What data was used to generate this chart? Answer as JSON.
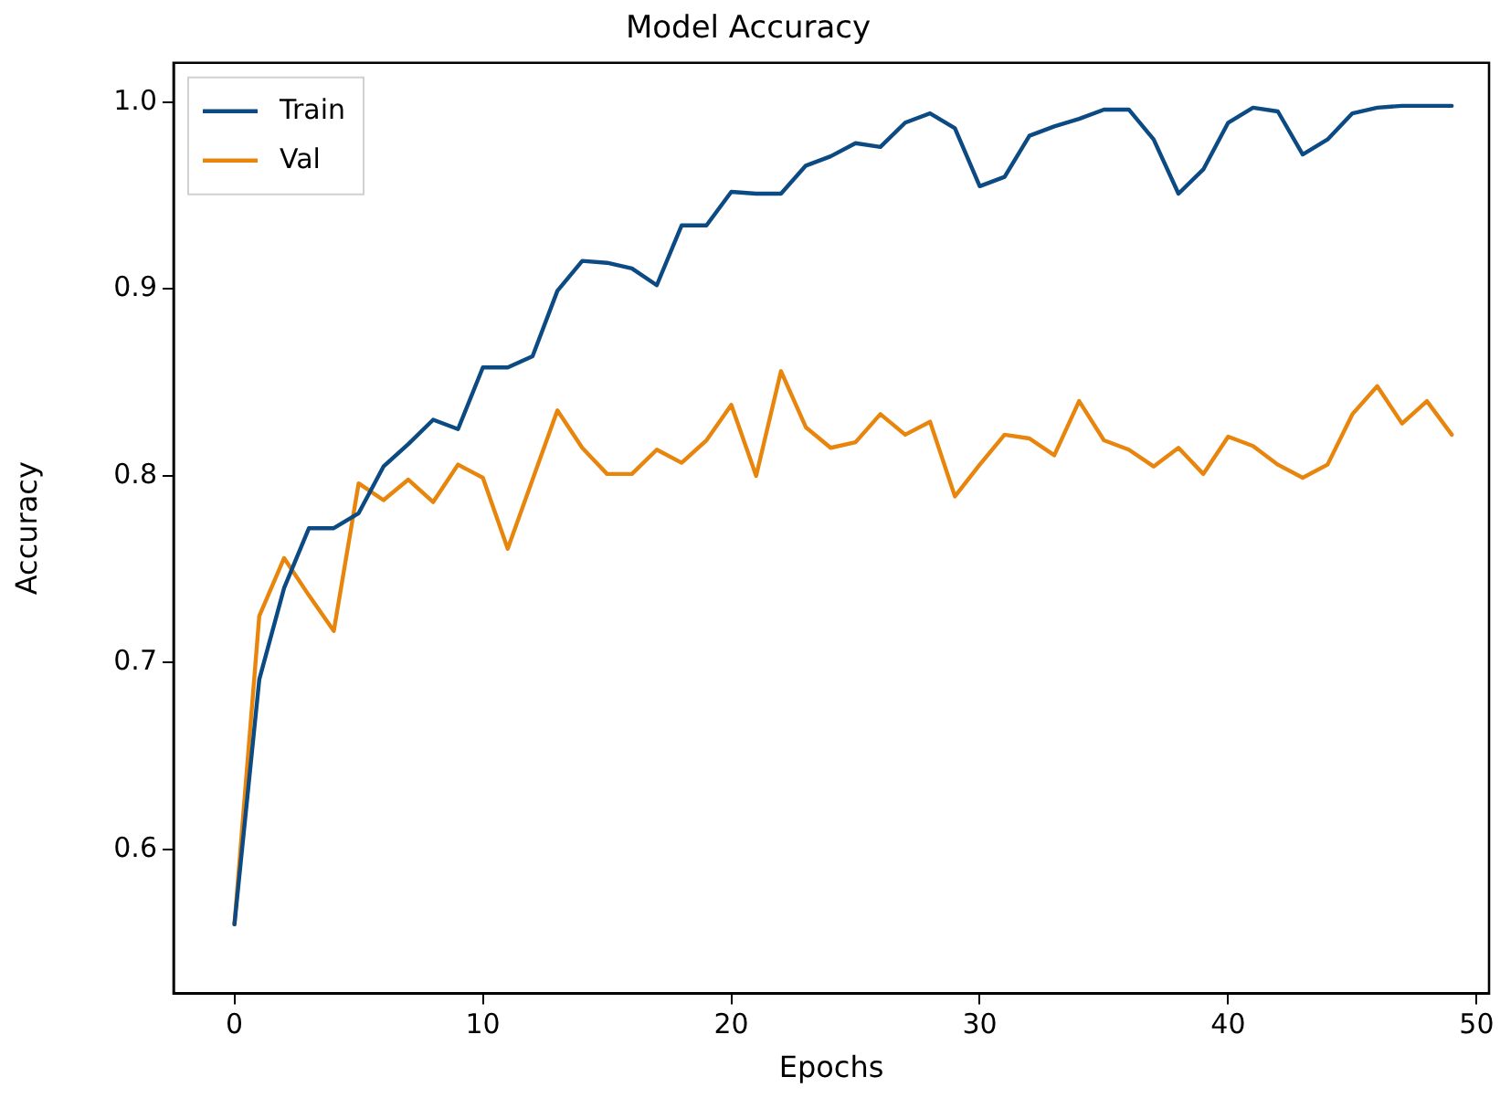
{
  "chart_data": {
    "type": "line",
    "title": "Model Accuracy",
    "xlabel": "Epochs",
    "ylabel": "Accuracy",
    "x": [
      0,
      1,
      2,
      3,
      4,
      5,
      6,
      7,
      8,
      9,
      10,
      11,
      12,
      13,
      14,
      15,
      16,
      17,
      18,
      19,
      20,
      21,
      22,
      23,
      24,
      25,
      26,
      27,
      28,
      29,
      30,
      31,
      32,
      33,
      34,
      35,
      36,
      37,
      38,
      39,
      40,
      41,
      42,
      43,
      44,
      45,
      46,
      47,
      48,
      49
    ],
    "series": [
      {
        "name": "Train",
        "color": "#0b4a82",
        "values": [
          0.56,
          0.691,
          0.74,
          0.772,
          0.772,
          0.78,
          0.805,
          0.817,
          0.83,
          0.825,
          0.858,
          0.858,
          0.864,
          0.899,
          0.915,
          0.914,
          0.911,
          0.902,
          0.934,
          0.934,
          0.952,
          0.951,
          0.951,
          0.966,
          0.971,
          0.978,
          0.976,
          0.989,
          0.994,
          0.986,
          0.955,
          0.96,
          0.982,
          0.987,
          0.991,
          0.996,
          0.996,
          0.98,
          0.951,
          0.964,
          0.989,
          0.997,
          0.995,
          0.972,
          0.98,
          0.994,
          0.997,
          0.998,
          0.998,
          0.998
        ]
      },
      {
        "name": "Val",
        "color": "#e8850c",
        "values": [
          0.56,
          0.725,
          0.756,
          0.736,
          0.717,
          0.796,
          0.787,
          0.798,
          0.786,
          0.806,
          0.799,
          0.761,
          0.798,
          0.835,
          0.815,
          0.801,
          0.801,
          0.814,
          0.807,
          0.819,
          0.838,
          0.8,
          0.856,
          0.826,
          0.815,
          0.818,
          0.833,
          0.822,
          0.829,
          0.789,
          0.806,
          0.822,
          0.82,
          0.811,
          0.84,
          0.819,
          0.814,
          0.805,
          0.815,
          0.801,
          0.821,
          0.816,
          0.806,
          0.799,
          0.806,
          0.833,
          0.848,
          0.828,
          0.84,
          0.822
        ]
      }
    ],
    "xlim": [
      -2.45,
      50.5
    ],
    "ylim": [
      0.523,
      1.021
    ],
    "xticks": [
      0,
      10,
      20,
      30,
      40,
      50
    ],
    "yticks": [
      0.6,
      0.7,
      0.8,
      0.9,
      {
        "value": 1.0,
        "label": "1.0"
      }
    ],
    "grid": false,
    "legend": "top left",
    "marker": "none",
    "line_style": "solid"
  }
}
